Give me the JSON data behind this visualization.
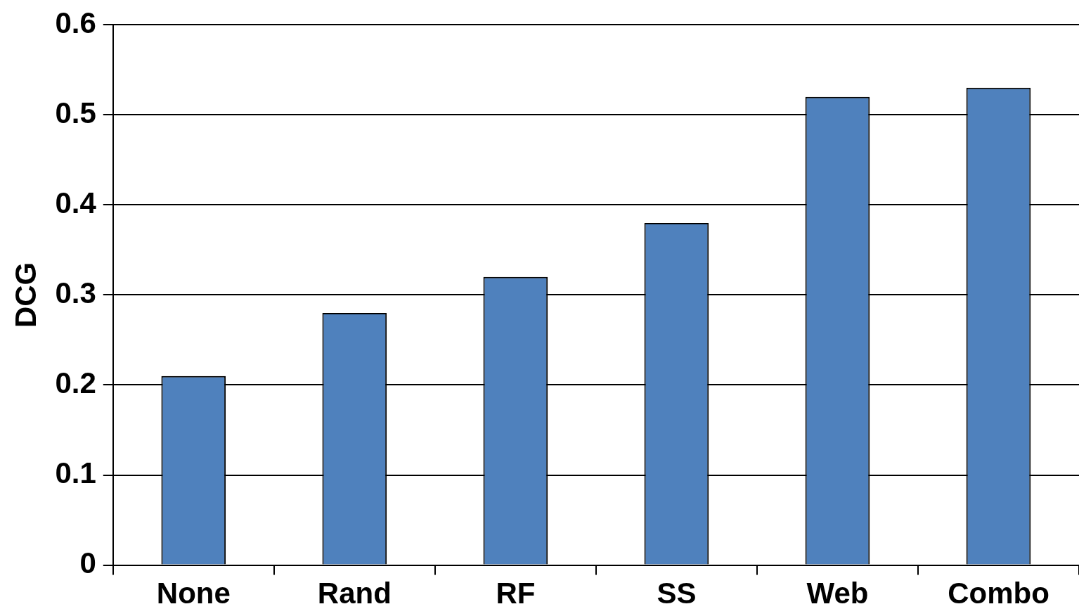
{
  "chart_data": {
    "type": "bar",
    "ylabel": "DCG",
    "categories": [
      "None",
      "Rand",
      "RF",
      "SS",
      "Web",
      "Combo"
    ],
    "values": [
      0.21,
      0.28,
      0.32,
      0.38,
      0.52,
      0.53
    ],
    "color": "#4f81bd",
    "ylim": [
      0,
      0.6
    ],
    "yticks": [
      0,
      0.1,
      0.2,
      0.3,
      0.4,
      0.5,
      0.6
    ],
    "grid": "y",
    "legend": false
  }
}
